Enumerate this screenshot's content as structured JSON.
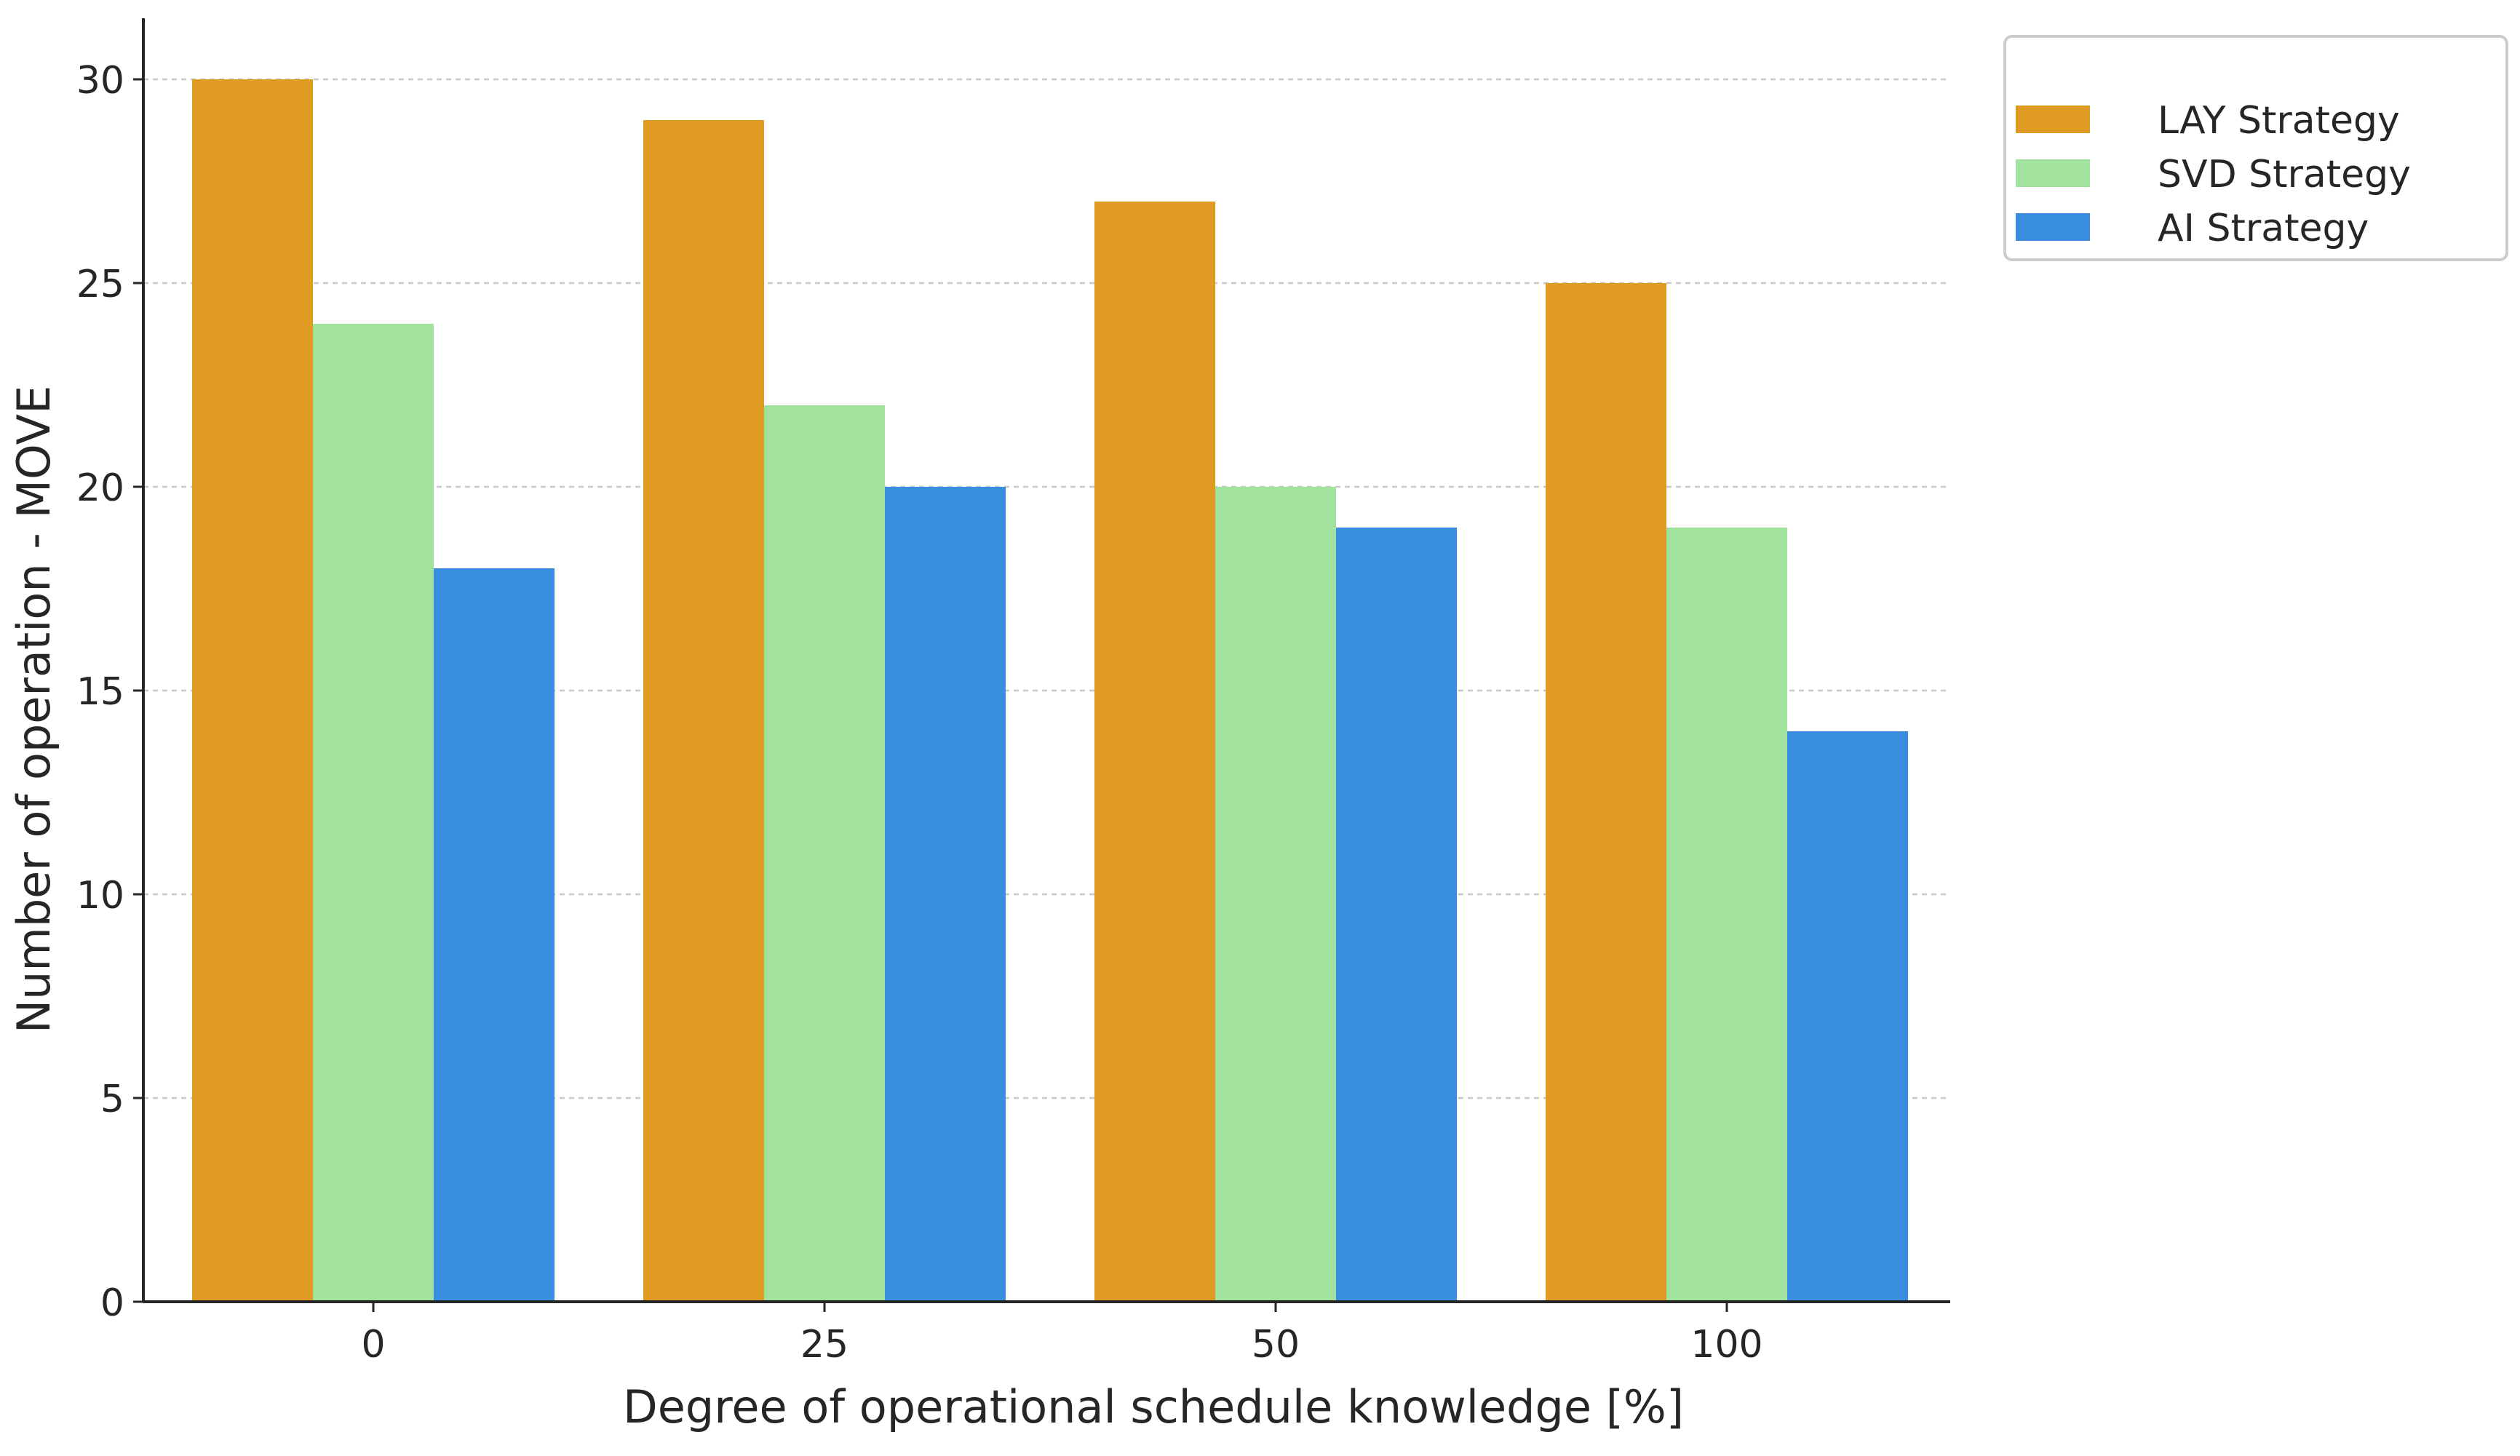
{
  "chart_data": {
    "type": "bar",
    "categories": [
      "0",
      "25",
      "50",
      "100"
    ],
    "series": [
      {
        "name": "LAY Strategy",
        "values": [
          30,
          29,
          27,
          25
        ],
        "color": "#DF9B22"
      },
      {
        "name": "SVD Strategy",
        "values": [
          24,
          22,
          20,
          19
        ],
        "color": "#A0E29E"
      },
      {
        "name": "AI Strategy",
        "values": [
          18,
          20,
          19,
          14
        ],
        "color": "#3A8EE0"
      }
    ],
    "title": "",
    "xlabel": "Degree of operational schedule knowledge [%]",
    "ylabel": "Number of operation - MOVE",
    "ylim": [
      0,
      31.5
    ],
    "yticks": [
      0,
      5,
      10,
      15,
      20,
      25,
      30
    ],
    "grid": "horizontal dashed",
    "legend_position": "top-right, outside plot"
  }
}
